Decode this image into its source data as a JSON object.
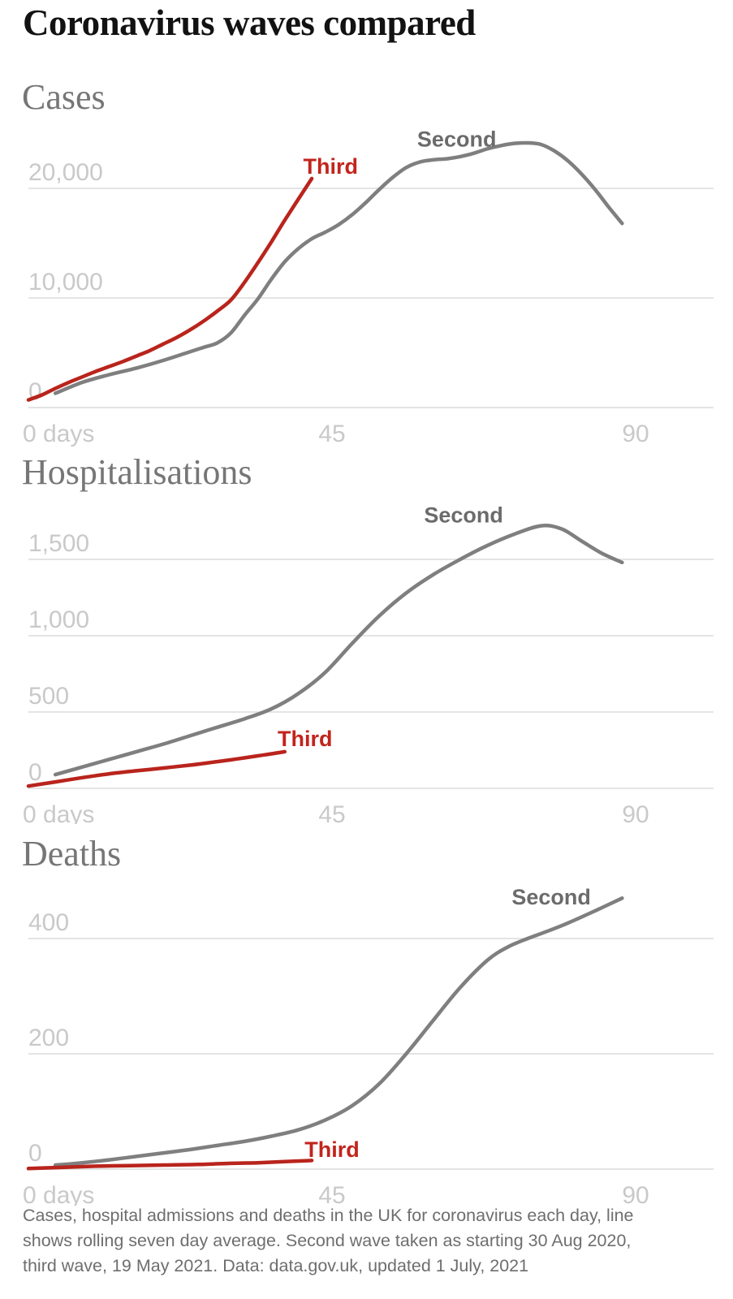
{
  "page": {
    "title": "Coronavirus waves compared",
    "footnote": "Cases, hospital admissions and deaths in the UK for coronavirus each day, line shows rolling seven day average. Second wave taken as starting 30 Aug 2020, third wave, 19 May 2021. Data: data.gov.uk, updated 1 July, 2021"
  },
  "colors": {
    "second_line": "#7f7f7f",
    "second_label": "#6b6b6b",
    "third_line": "#b9241c",
    "third_label": "#c2241c",
    "grid": "#e4e4e4",
    "tick": "#c9c9c9",
    "heading": "#767676",
    "title": "#121212",
    "footnote": "#6e6e6e"
  },
  "chart_data": [
    {
      "id": "cases",
      "type": "line",
      "title": "Cases",
      "x_unit": "days",
      "xlim": [
        0,
        100
      ],
      "ylim": [
        0,
        26000
      ],
      "grid": "horizontal-only",
      "x_ticks": [
        {
          "day": 0,
          "label": "0 days"
        },
        {
          "day": 45,
          "label": "45"
        },
        {
          "day": 90,
          "label": "90"
        }
      ],
      "y_ticks": [
        {
          "value": 0,
          "label": "0"
        },
        {
          "value": 10000,
          "label": "10,000"
        },
        {
          "value": 20000,
          "label": "20,000"
        }
      ],
      "series": [
        {
          "name": "Second",
          "points": [
            [
              4,
              1300
            ],
            [
              8,
              2300
            ],
            [
              12,
              3000
            ],
            [
              16,
              3600
            ],
            [
              20,
              4300
            ],
            [
              24,
              5100
            ],
            [
              26,
              5500
            ],
            [
              28,
              5900
            ],
            [
              30,
              6800
            ],
            [
              32,
              8400
            ],
            [
              34,
              9900
            ],
            [
              36,
              11700
            ],
            [
              38,
              13300
            ],
            [
              40,
              14500
            ],
            [
              42,
              15400
            ],
            [
              44,
              16000
            ],
            [
              46,
              16700
            ],
            [
              48,
              17600
            ],
            [
              50,
              18700
            ],
            [
              52,
              19900
            ],
            [
              54,
              21000
            ],
            [
              56,
              21900
            ],
            [
              58,
              22400
            ],
            [
              60,
              22600
            ],
            [
              62,
              22700
            ],
            [
              64,
              22900
            ],
            [
              66,
              23200
            ],
            [
              68,
              23600
            ],
            [
              70,
              23900
            ],
            [
              72,
              24100
            ],
            [
              74,
              24150
            ],
            [
              76,
              24000
            ],
            [
              78,
              23400
            ],
            [
              80,
              22500
            ],
            [
              82,
              21300
            ],
            [
              84,
              19900
            ],
            [
              86,
              18300
            ],
            [
              88,
              16800
            ]
          ]
        },
        {
          "name": "Third",
          "points": [
            [
              0,
              700
            ],
            [
              2,
              1150
            ],
            [
              4,
              1750
            ],
            [
              6,
              2300
            ],
            [
              8,
              2800
            ],
            [
              10,
              3300
            ],
            [
              12,
              3750
            ],
            [
              14,
              4200
            ],
            [
              16,
              4700
            ],
            [
              18,
              5200
            ],
            [
              20,
              5800
            ],
            [
              22,
              6400
            ],
            [
              24,
              7100
            ],
            [
              26,
              7900
            ],
            [
              28,
              8800
            ],
            [
              30,
              9800
            ],
            [
              32,
              11400
            ],
            [
              34,
              13200
            ],
            [
              36,
              15100
            ],
            [
              38,
              17100
            ],
            [
              40,
              19000
            ],
            [
              42,
              20900
            ]
          ]
        }
      ],
      "labels": [
        {
          "text": "Second",
          "series": "Second",
          "day": 63.5,
          "value": 24500
        },
        {
          "text": "Third",
          "series": "Third",
          "day": 44.8,
          "value": 22000
        }
      ]
    },
    {
      "id": "hospitalisations",
      "type": "line",
      "title": "Hospitalisations",
      "x_unit": "days",
      "xlim": [
        0,
        100
      ],
      "ylim": [
        0,
        1890
      ],
      "grid": "horizontal-only",
      "x_ticks": [
        {
          "day": 0,
          "label": "0 days"
        },
        {
          "day": 45,
          "label": "45"
        },
        {
          "day": 90,
          "label": "90"
        }
      ],
      "y_ticks": [
        {
          "value": 0,
          "label": "0"
        },
        {
          "value": 500,
          "label": "500"
        },
        {
          "value": 1000,
          "label": "1,000"
        },
        {
          "value": 1500,
          "label": "1,500"
        }
      ],
      "series": [
        {
          "name": "Second",
          "points": [
            [
              4,
              90
            ],
            [
              8,
              140
            ],
            [
              12,
              190
            ],
            [
              16,
              240
            ],
            [
              20,
              290
            ],
            [
              24,
              345
            ],
            [
              28,
              400
            ],
            [
              32,
              455
            ],
            [
              36,
              520
            ],
            [
              40,
              620
            ],
            [
              44,
              760
            ],
            [
              48,
              950
            ],
            [
              52,
              1130
            ],
            [
              56,
              1280
            ],
            [
              60,
              1400
            ],
            [
              64,
              1500
            ],
            [
              68,
              1590
            ],
            [
              72,
              1665
            ],
            [
              76,
              1720
            ],
            [
              79,
              1700
            ],
            [
              82,
              1620
            ],
            [
              85,
              1540
            ],
            [
              88,
              1480
            ]
          ]
        },
        {
          "name": "Third",
          "points": [
            [
              0,
              15
            ],
            [
              4,
              42
            ],
            [
              8,
              70
            ],
            [
              12,
              95
            ],
            [
              16,
              115
            ],
            [
              20,
              133
            ],
            [
              24,
              152
            ],
            [
              28,
              175
            ],
            [
              31,
              193
            ],
            [
              34,
              213
            ],
            [
              36,
              226
            ],
            [
              38,
              240
            ]
          ]
        }
      ],
      "labels": [
        {
          "text": "Second",
          "series": "Second",
          "day": 64.5,
          "value": 1790
        },
        {
          "text": "Third",
          "series": "Third",
          "day": 41,
          "value": 325
        }
      ]
    },
    {
      "id": "deaths",
      "type": "line",
      "title": "Deaths",
      "x_unit": "days",
      "xlim": [
        0,
        100
      ],
      "ylim": [
        0,
        500
      ],
      "grid": "horizontal-only",
      "x_ticks": [
        {
          "day": 0,
          "label": "0 days"
        },
        {
          "day": 45,
          "label": "45"
        },
        {
          "day": 90,
          "label": "90"
        }
      ],
      "y_ticks": [
        {
          "value": 0,
          "label": "0"
        },
        {
          "value": 200,
          "label": "200"
        },
        {
          "value": 400,
          "label": "400"
        }
      ],
      "series": [
        {
          "name": "Second",
          "points": [
            [
              4,
              7
            ],
            [
              8,
              11
            ],
            [
              12,
              16
            ],
            [
              16,
              22
            ],
            [
              20,
              28
            ],
            [
              24,
              34
            ],
            [
              28,
              41
            ],
            [
              32,
              48
            ],
            [
              36,
              57
            ],
            [
              40,
              68
            ],
            [
              44,
              85
            ],
            [
              48,
              110
            ],
            [
              52,
              148
            ],
            [
              56,
              200
            ],
            [
              60,
              258
            ],
            [
              64,
              315
            ],
            [
              68,
              362
            ],
            [
              71,
              385
            ],
            [
              74,
              400
            ],
            [
              77,
              413
            ],
            [
              80,
              427
            ],
            [
              84,
              448
            ],
            [
              88,
              470
            ]
          ]
        },
        {
          "name": "Third",
          "points": [
            [
              0,
              1
            ],
            [
              5,
              3
            ],
            [
              10,
              5
            ],
            [
              15,
              6
            ],
            [
              20,
              7
            ],
            [
              25,
              8
            ],
            [
              30,
              10
            ],
            [
              34,
              11
            ],
            [
              38,
              13
            ],
            [
              42,
              15
            ]
          ]
        }
      ],
      "labels": [
        {
          "text": "Second",
          "series": "Second",
          "day": 77.5,
          "value": 472
        },
        {
          "text": "Third",
          "series": "Third",
          "day": 45,
          "value": 34
        }
      ]
    }
  ]
}
